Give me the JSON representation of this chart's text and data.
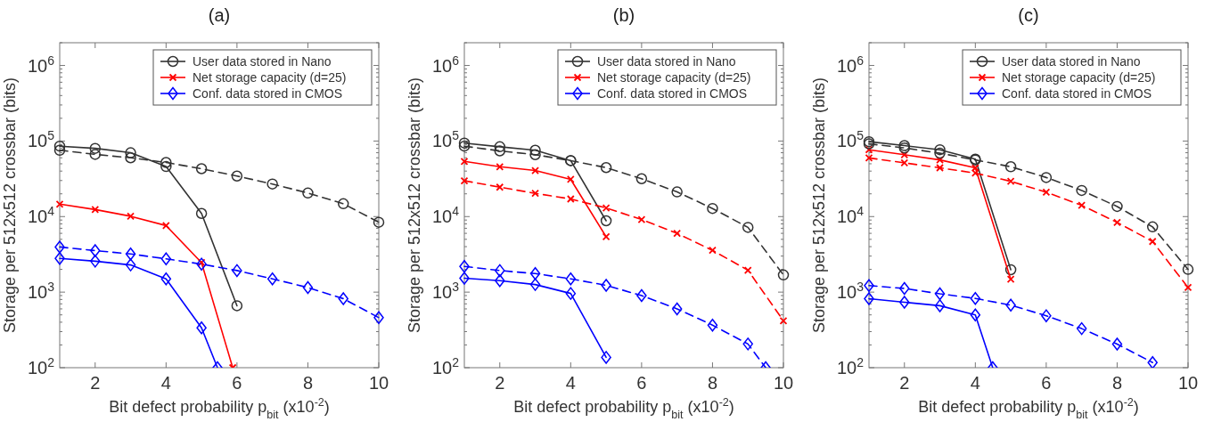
{
  "chart_data": [
    {
      "type": "line",
      "title": "(a)",
      "xlabel": "Bit defect probability p$_{bit}$ (x10$^{-2}$)",
      "ylabel": "Storage per 512x512 crossbar (bits)",
      "log": "y",
      "legend": "top right",
      "grid": false,
      "xlim": [
        1,
        10
      ],
      "xticks": [
        2,
        4,
        6,
        8,
        10
      ],
      "ylim": [
        100,
        2000000
      ],
      "yticks": [
        {
          "value": 100,
          "label": "10$^{2}$"
        },
        {
          "value": 1000,
          "label": "10$^{3}$"
        },
        {
          "value": 10000,
          "label": "10$^{4}$"
        },
        {
          "value": 100000,
          "label": "10$^{5}$"
        },
        {
          "value": 1000000,
          "label": "10$^{6}$"
        }
      ],
      "x": [
        1,
        2,
        3,
        4,
        5,
        6,
        7,
        8,
        9,
        10
      ],
      "series": [
        {
          "name": "User data stored in Nano",
          "color": "#333333",
          "marker": "circle",
          "line_style": "solid",
          "x": [
            1,
            2,
            3,
            4,
            5,
            6
          ],
          "values": [
            85500,
            80000,
            70000,
            46000,
            11000,
            660
          ]
        },
        {
          "name": "Net storage capacity (d=25)",
          "color": "#ff0000",
          "marker": "cross",
          "line_style": "solid",
          "x": [
            1,
            2,
            3,
            4,
            5,
            5.88
          ],
          "values": [
            14600,
            12400,
            10100,
            7600,
            2460,
            100
          ]
        },
        {
          "name": "Conf. data stored in CMOS",
          "color": "#0000ff",
          "marker": "diamond",
          "line_style": "solid",
          "x": [
            1,
            2,
            3,
            4,
            5,
            5.45
          ],
          "values": [
            2800,
            2570,
            2290,
            1500,
            337,
            100
          ]
        },
        {
          "color": "#333333",
          "marker": "circle",
          "line_style": "dashed",
          "values": [
            75500,
            66500,
            60000,
            52000,
            43000,
            34400,
            27000,
            20500,
            14800,
            8400
          ]
        },
        {
          "color": "#0000ff",
          "marker": "diamond",
          "line_style": "dashed",
          "values": [
            3950,
            3550,
            3200,
            2760,
            2350,
            1930,
            1500,
            1150,
            820,
            460
          ]
        }
      ]
    },
    {
      "type": "line",
      "title": "(b)",
      "xlabel": "Bit defect probability p$_{bit}$ (x10$^{-2}$)",
      "ylabel": "Storage per 512x512 crossbar (bits)",
      "log": "y",
      "legend": "top right",
      "grid": false,
      "xlim": [
        1,
        10
      ],
      "xticks": [
        2,
        4,
        6,
        8,
        10
      ],
      "ylim": [
        100,
        2000000
      ],
      "yticks": [
        {
          "value": 100,
          "label": "10$^{2}$"
        },
        {
          "value": 1000,
          "label": "10$^{3}$"
        },
        {
          "value": 10000,
          "label": "10$^{4}$"
        },
        {
          "value": 100000,
          "label": "10$^{5}$"
        },
        {
          "value": 1000000,
          "label": "10$^{6}$"
        }
      ],
      "x": [
        1,
        2,
        3,
        4,
        5,
        6,
        7,
        8,
        9,
        10
      ],
      "series": [
        {
          "name": "User data stored in Nano",
          "color": "#333333",
          "marker": "circle",
          "line_style": "solid",
          "x": [
            1,
            2,
            3,
            4,
            5
          ],
          "values": [
            94000,
            84000,
            75500,
            55000,
            8800
          ]
        },
        {
          "name": "Net storage capacity (d=25)",
          "color": "#ff0000",
          "marker": "cross",
          "line_style": "solid",
          "x": [
            1,
            2,
            3,
            4,
            5
          ],
          "values": [
            53700,
            45700,
            40700,
            31100,
            5400
          ]
        },
        {
          "name": "Conf. data stored in CMOS",
          "color": "#0000ff",
          "marker": "diamond",
          "line_style": "solid",
          "x": [
            1,
            2,
            3,
            4,
            5
          ],
          "values": [
            1530,
            1420,
            1260,
            960,
            137
          ]
        },
        {
          "color": "#333333",
          "marker": "circle",
          "line_style": "dashed",
          "values": [
            85500,
            74000,
            66000,
            55000,
            44500,
            31700,
            21200,
            12800,
            7200,
            1690
          ]
        },
        {
          "color": "#ff0000",
          "marker": "cross",
          "line_style": "dashed",
          "values": [
            29800,
            24500,
            20300,
            17100,
            13000,
            9150,
            6000,
            3570,
            1950,
            418
          ]
        },
        {
          "color": "#0000ff",
          "marker": "diamond",
          "line_style": "dashed",
          "x": [
            1,
            2,
            3,
            4,
            5,
            6,
            7,
            8,
            9,
            9.5
          ],
          "values": [
            2190,
            1930,
            1760,
            1500,
            1230,
            900,
            600,
            366,
            206,
            100
          ]
        }
      ]
    },
    {
      "type": "line",
      "title": "(c)",
      "xlabel": "Bit defect probability p$_{bit}$ (x10$^{-2}$)",
      "ylabel": "Storage per 512x512 crossbar (bits)",
      "log": "y",
      "legend": "top right",
      "grid": false,
      "xlim": [
        1,
        10
      ],
      "xticks": [
        2,
        4,
        6,
        8,
        10
      ],
      "ylim": [
        100,
        2000000
      ],
      "yticks": [
        {
          "value": 100,
          "label": "10$^{2}$"
        },
        {
          "value": 1000,
          "label": "10$^{3}$"
        },
        {
          "value": 10000,
          "label": "10$^{4}$"
        },
        {
          "value": 100000,
          "label": "10$^{5}$"
        },
        {
          "value": 1000000,
          "label": "10$^{6}$"
        }
      ],
      "x": [
        1,
        2,
        3,
        4,
        5,
        6,
        7,
        8,
        9,
        10
      ],
      "series": [
        {
          "name": "User data stored in Nano",
          "color": "#333333",
          "marker": "circle",
          "line_style": "solid",
          "x": [
            1,
            2,
            3,
            4,
            5
          ],
          "values": [
            98000,
            87000,
            76700,
            57700,
            1980
          ]
        },
        {
          "name": "Net storage capacity (d=25)",
          "color": "#ff0000",
          "marker": "cross",
          "line_style": "solid",
          "x": [
            1,
            2,
            3,
            4,
            5
          ],
          "values": [
            76700,
            65900,
            56200,
            44200,
            1480
          ]
        },
        {
          "name": "Conf. data stored in CMOS",
          "color": "#0000ff",
          "marker": "diamond",
          "line_style": "solid",
          "x": [
            1,
            2,
            3,
            4,
            4.49
          ],
          "values": [
            818,
            735,
            661,
            500,
            100
          ]
        },
        {
          "color": "#333333",
          "marker": "circle",
          "line_style": "dashed",
          "values": [
            91800,
            81100,
            69000,
            56200,
            45700,
            32900,
            22200,
            13600,
            7300,
            2000
          ]
        },
        {
          "color": "#ff0000",
          "marker": "cross",
          "line_style": "dashed",
          "values": [
            59800,
            51400,
            44200,
            37600,
            29300,
            21000,
            14100,
            8360,
            4680,
            1150
          ]
        },
        {
          "color": "#0000ff",
          "marker": "diamond",
          "line_style": "dashed",
          "x": [
            1,
            2,
            3,
            4,
            5,
            6,
            7,
            8,
            9
          ],
          "values": [
            1220,
            1120,
            950,
            826,
            672,
            487,
            329,
            205,
            117
          ]
        }
      ]
    }
  ]
}
